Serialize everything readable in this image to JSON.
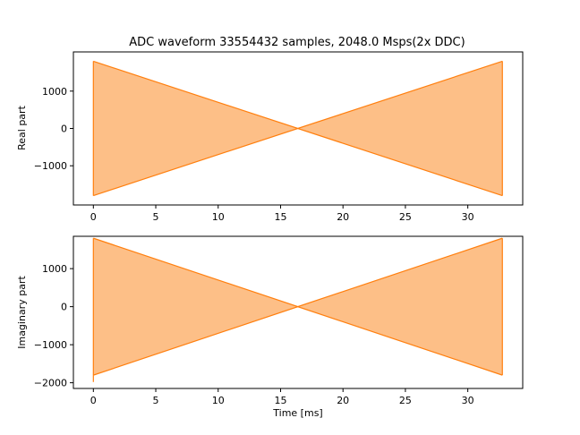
{
  "chart_data": {
    "type": "area",
    "title": "ADC waveform 33554432 samples, 2048.0 Msps(2x DDC)",
    "xlabel": "Time [ms]",
    "fill_color": "#fdbf87",
    "line_color": "#ff7f0e",
    "x_ticks": [
      0,
      5,
      10,
      15,
      20,
      25,
      30
    ],
    "xlim": [
      -1.6,
      34.4
    ],
    "subplots": [
      {
        "name": "real",
        "ylabel": "Real part",
        "ylim": [
          -2050,
          2050
        ],
        "y_ticks": [
          -1000,
          0,
          1000
        ],
        "envelope": {
          "x": [
            0,
            16.38,
            32.77
          ],
          "upper": [
            1800,
            0,
            1800
          ],
          "lower": [
            -1800,
            0,
            -1800
          ]
        }
      },
      {
        "name": "imaginary",
        "ylabel": "Imaginary part",
        "ylim": [
          -2150,
          1850
        ],
        "y_ticks": [
          -2000,
          -1000,
          0,
          1000
        ],
        "envelope": {
          "x": [
            0,
            16.38,
            32.77
          ],
          "upper": [
            1800,
            0,
            1800
          ],
          "lower": [
            -1800,
            0,
            -1800
          ]
        },
        "spike": {
          "x": 0,
          "y": -1980
        }
      }
    ]
  }
}
